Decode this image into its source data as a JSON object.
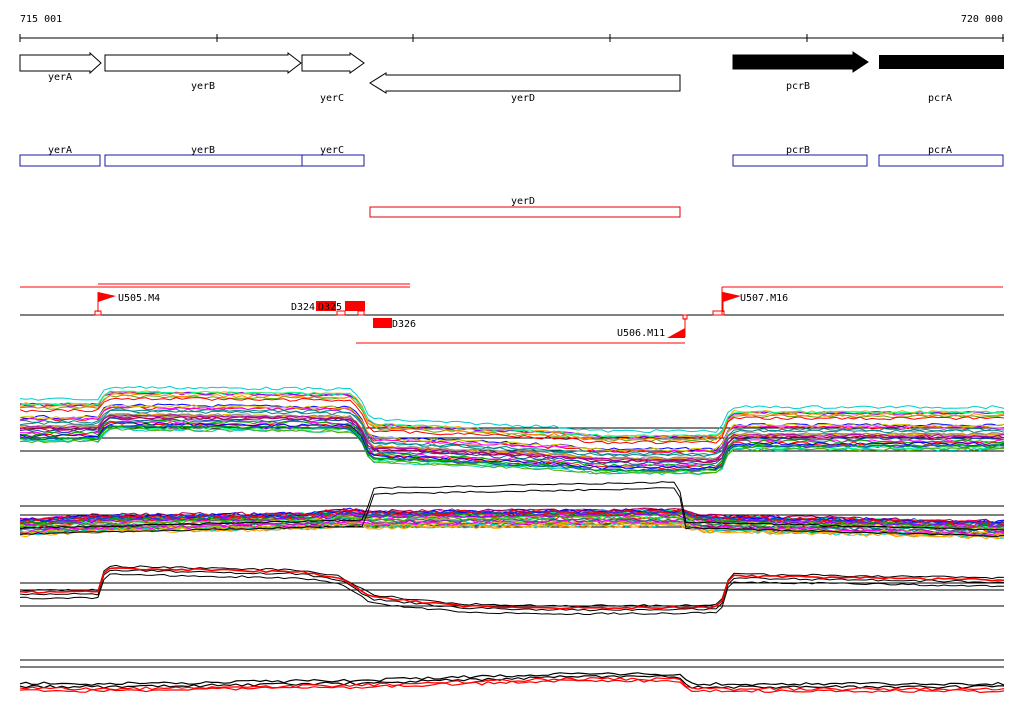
{
  "ruler": {
    "start_label": "715 001",
    "end_label": "720 000",
    "range": [
      715001,
      720000
    ]
  },
  "genes": [
    {
      "name": "yerA",
      "strand": "+",
      "style": "open"
    },
    {
      "name": "yerB",
      "strand": "+",
      "style": "open"
    },
    {
      "name": "yerC",
      "strand": "+",
      "style": "open"
    },
    {
      "name": "yerD",
      "strand": "-",
      "style": "open"
    },
    {
      "name": "pcrB",
      "strand": "+",
      "style": "filled"
    },
    {
      "name": "pcrA",
      "strand": "+",
      "style": "filled"
    }
  ],
  "forward_box_labels": [
    "yerA",
    "yerB",
    "yerC",
    "pcrB",
    "pcrA"
  ],
  "reverse_box_labels": [
    "yerD"
  ],
  "markers": [
    {
      "label": "U505.M4"
    },
    {
      "label": "U507.M16"
    },
    {
      "label": "D324"
    },
    {
      "label": "D325"
    },
    {
      "label": "D326"
    },
    {
      "label": "U506.M11"
    }
  ],
  "colors": {
    "forward_box": "#1a1aa6",
    "reverse_box": "#e00000",
    "feature_red": "#ff0000",
    "gene_filled": "#000000",
    "axis": "#000000"
  },
  "expression_panels": [
    {
      "panel": 1,
      "series": "many colored"
    },
    {
      "panel": 2,
      "series": "many colored"
    },
    {
      "panel": 3,
      "series": "black and red"
    },
    {
      "panel": 4,
      "series": "black and red"
    }
  ]
}
